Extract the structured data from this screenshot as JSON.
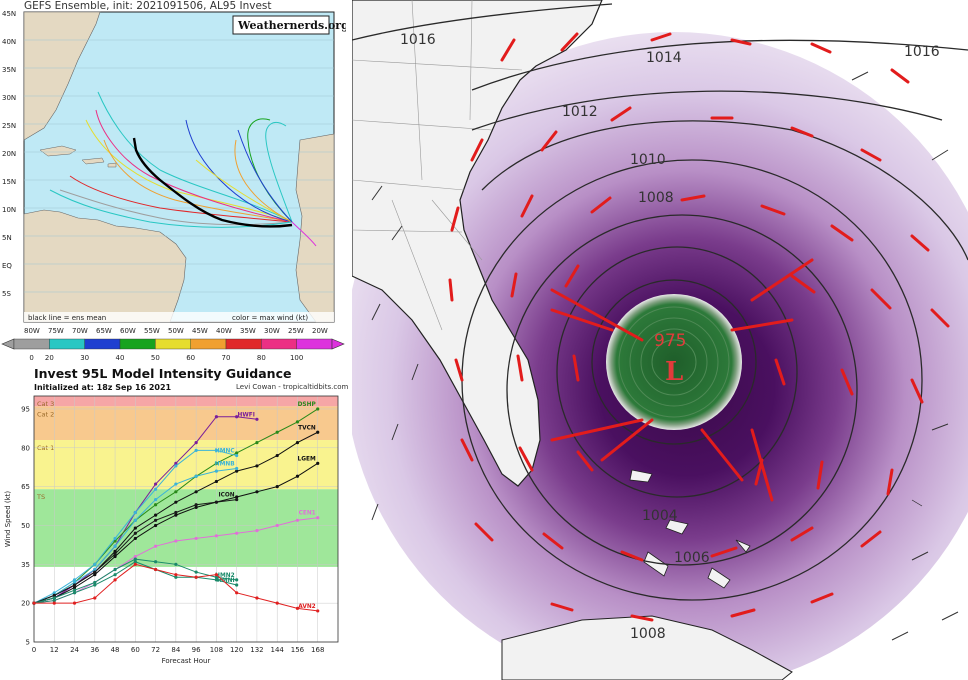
{
  "track_panel": {
    "title": "GEFS Ensemble, init: 2021091506, AL95 Invest",
    "watermark": "Weathernerds.org",
    "note_left": "black line = ens mean",
    "note_right": "color = max wind (kt)",
    "lat_labels": [
      "45N",
      "40N",
      "35N",
      "30N",
      "25N",
      "20N",
      "15N",
      "10N",
      "5N",
      "EQ",
      "5S"
    ],
    "lon_labels": [
      "80W",
      "75W",
      "70W",
      "65W",
      "60W",
      "55W",
      "50W",
      "45W",
      "40W",
      "35W",
      "30W",
      "25W",
      "20W"
    ],
    "ocean_color": "#bfe9f5",
    "land_color": "#e4d9c2",
    "mean_track_color": "#000000"
  },
  "colorbar": {
    "labels": [
      "0",
      "20",
      "30",
      "40",
      "50",
      "60",
      "70",
      "80",
      "100"
    ],
    "colors": [
      "#9e9e9e",
      "#29c7c3",
      "#1f3fd0",
      "#17a31e",
      "#e6dd2e",
      "#f0a030",
      "#e0282a",
      "#ec2f84",
      "#dd33dd"
    ]
  },
  "intensity_panel": {
    "title": "Invest 95L Model Intensity Guidance",
    "initialized": "Initialized at: 18z Sep 16 2021",
    "credit": "Levi Cowan - tropicaltidbits.com",
    "categories": [
      {
        "label": "Cat 3",
        "color": "#f6a6a6"
      },
      {
        "label": "Cat 2",
        "color": "#f8c98e"
      },
      {
        "label": "Cat 1",
        "color": "#f9f38f"
      },
      {
        "label": "TS",
        "color": "#9fe79a"
      }
    ]
  },
  "chart_data": [
    {
      "type": "line",
      "title": "Invest 95L Model Intensity Guidance",
      "xlabel": "Forecast Hour",
      "ylabel": "Wind Speed (kt)",
      "x": [
        0,
        12,
        24,
        36,
        48,
        60,
        72,
        84,
        96,
        108,
        120,
        132,
        144,
        156,
        168
      ],
      "xlim": [
        0,
        180
      ],
      "ylim": [
        5,
        100
      ],
      "yticks": [
        5,
        20,
        35,
        50,
        65,
        80,
        95
      ],
      "category_bands": [
        {
          "label": "Cat 3",
          "from": 96,
          "to": 100
        },
        {
          "label": "Cat 2",
          "from": 83,
          "to": 96
        },
        {
          "label": "Cat 1",
          "from": 64,
          "to": 83
        },
        {
          "label": "TS",
          "from": 34,
          "to": 64
        }
      ],
      "grid": true,
      "series": [
        {
          "name": "HWFI",
          "color": "#7a1f9a",
          "values": [
            20,
            22,
            27,
            33,
            42,
            55,
            66,
            74,
            82,
            92,
            92,
            91,
            null,
            null,
            null
          ]
        },
        {
          "name": "DSHP",
          "color": "#2a8a1a",
          "values": [
            20,
            23,
            28,
            35,
            44,
            52,
            58,
            63,
            69,
            74,
            78,
            82,
            86,
            90,
            95
          ]
        },
        {
          "name": "TVCN",
          "color": "#111111",
          "values": [
            20,
            23,
            27,
            32,
            40,
            49,
            54,
            59,
            63,
            67,
            71,
            73,
            77,
            82,
            86
          ]
        },
        {
          "name": "HMNC",
          "color": "#3cb4d8",
          "values": [
            20,
            24,
            29,
            35,
            45,
            55,
            64,
            73,
            79,
            79,
            77,
            null,
            null,
            null,
            null
          ]
        },
        {
          "name": "HMNB",
          "color": "#3cb4d8",
          "values": [
            20,
            23,
            28,
            33,
            42,
            52,
            60,
            66,
            69,
            71,
            72,
            null,
            null,
            null,
            null
          ]
        },
        {
          "name": "LGEM",
          "color": "#111111",
          "values": [
            20,
            22,
            26,
            31,
            38,
            45,
            50,
            54,
            57,
            59,
            61,
            63,
            65,
            69,
            74
          ]
        },
        {
          "name": "ICON",
          "color": "#1a1a1a",
          "values": [
            20,
            23,
            27,
            32,
            39,
            47,
            52,
            55,
            58,
            59,
            60,
            null,
            null,
            null,
            null
          ]
        },
        {
          "name": "CEN1",
          "color": "#e070d8",
          "values": [
            20,
            21,
            24,
            28,
            33,
            38,
            42,
            44,
            45,
            46,
            47,
            48,
            50,
            52,
            53
          ]
        },
        {
          "name": "HMN2",
          "color": "#1b8a6a",
          "values": [
            20,
            22,
            25,
            28,
            33,
            37,
            36,
            35,
            32,
            30,
            29,
            null,
            null,
            null,
            null
          ]
        },
        {
          "name": "HMNI",
          "color": "#1b8a6a",
          "values": [
            20,
            21,
            24,
            27,
            31,
            36,
            33,
            30,
            30,
            29,
            27,
            null,
            null,
            null,
            null
          ]
        },
        {
          "name": "AVN2",
          "color": "#e02020",
          "values": [
            20,
            20,
            20,
            22,
            29,
            35,
            33,
            31,
            30,
            31,
            24,
            22,
            20,
            18,
            17
          ]
        }
      ]
    }
  ],
  "map_panel": {
    "low_pressure": "975",
    "low_symbol": "L",
    "isobars": [
      "1016",
      "1016",
      "1014",
      "1012",
      "1010",
      "1008",
      "1006",
      "1004",
      "1008"
    ],
    "colors": {
      "core": "#2d7a3a",
      "shading": "#5a1a6a",
      "barb": "#e21c1c"
    }
  }
}
